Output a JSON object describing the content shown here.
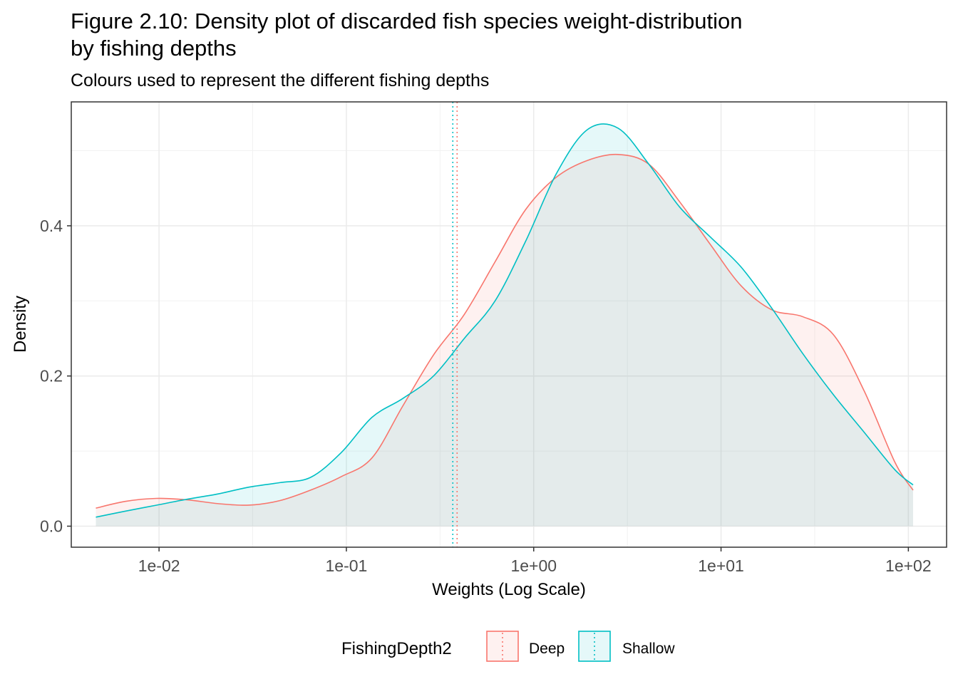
{
  "chart_data": {
    "type": "area",
    "title_lines": [
      "Figure 2.10: Density plot of discarded fish species weight-distribution",
      "by fishing depths"
    ],
    "subtitle": "Colours used to represent the different fishing depths",
    "xlabel": "Weights (Log Scale)",
    "ylabel": "Density",
    "x_scale": "log10",
    "xlim": [
      0.0034,
      160
    ],
    "ylim": [
      -0.028,
      0.565
    ],
    "x_ticks": [
      {
        "value": 0.01,
        "label": "1e-02"
      },
      {
        "value": 0.1,
        "label": "1e-01"
      },
      {
        "value": 1,
        "label": "1e+00"
      },
      {
        "value": 10,
        "label": "1e+01"
      },
      {
        "value": 100,
        "label": "1e+02"
      }
    ],
    "y_ticks": [
      {
        "value": 0.0,
        "label": "0.0"
      },
      {
        "value": 0.2,
        "label": "0.2"
      },
      {
        "value": 0.4,
        "label": "0.4"
      }
    ],
    "grid": true,
    "legend": {
      "title": "FishingDepth2",
      "position": "bottom"
    },
    "series": [
      {
        "name": "Deep",
        "color": "#F8766D",
        "fill_color": "#F8766D",
        "fill_opacity": 0.1,
        "mean_line": 0.39,
        "points": [
          [
            0.0046,
            0.024
          ],
          [
            0.0066,
            0.033
          ],
          [
            0.0097,
            0.037
          ],
          [
            0.0142,
            0.035
          ],
          [
            0.0207,
            0.03
          ],
          [
            0.0302,
            0.028
          ],
          [
            0.0441,
            0.034
          ],
          [
            0.0644,
            0.048
          ],
          [
            0.0939,
            0.066
          ],
          [
            0.1371,
            0.091
          ],
          [
            0.2,
            0.16
          ],
          [
            0.2919,
            0.228
          ],
          [
            0.4261,
            0.282
          ],
          [
            0.6219,
            0.352
          ],
          [
            0.9077,
            0.422
          ],
          [
            1.3248,
            0.465
          ],
          [
            1.9336,
            0.487
          ],
          [
            2.8222,
            0.495
          ],
          [
            4.119,
            0.482
          ],
          [
            6.0118,
            0.432
          ],
          [
            8.7743,
            0.375
          ],
          [
            12.8064,
            0.32
          ],
          [
            18.6912,
            0.288
          ],
          [
            27.2804,
            0.279
          ],
          [
            39.8167,
            0.255
          ],
          [
            58.1133,
            0.18
          ],
          [
            84.8176,
            0.085
          ],
          [
            106.0,
            0.048
          ]
        ]
      },
      {
        "name": "Shallow",
        "color": "#00BFC4",
        "fill_color": "#00BFC4",
        "fill_opacity": 0.1,
        "mean_line": 0.37,
        "points": [
          [
            0.0046,
            0.012
          ],
          [
            0.0066,
            0.02
          ],
          [
            0.0097,
            0.028
          ],
          [
            0.0142,
            0.036
          ],
          [
            0.0207,
            0.043
          ],
          [
            0.0302,
            0.052
          ],
          [
            0.0441,
            0.058
          ],
          [
            0.0644,
            0.065
          ],
          [
            0.0939,
            0.098
          ],
          [
            0.1371,
            0.145
          ],
          [
            0.2,
            0.17
          ],
          [
            0.2919,
            0.2
          ],
          [
            0.4261,
            0.25
          ],
          [
            0.6219,
            0.3
          ],
          [
            0.9077,
            0.38
          ],
          [
            1.3248,
            0.47
          ],
          [
            1.9336,
            0.528
          ],
          [
            2.8222,
            0.53
          ],
          [
            4.119,
            0.482
          ],
          [
            6.0118,
            0.425
          ],
          [
            8.7743,
            0.385
          ],
          [
            12.8064,
            0.345
          ],
          [
            18.6912,
            0.29
          ],
          [
            27.2804,
            0.23
          ],
          [
            39.8167,
            0.175
          ],
          [
            58.1133,
            0.125
          ],
          [
            84.8176,
            0.075
          ],
          [
            106.0,
            0.055
          ]
        ]
      }
    ]
  }
}
